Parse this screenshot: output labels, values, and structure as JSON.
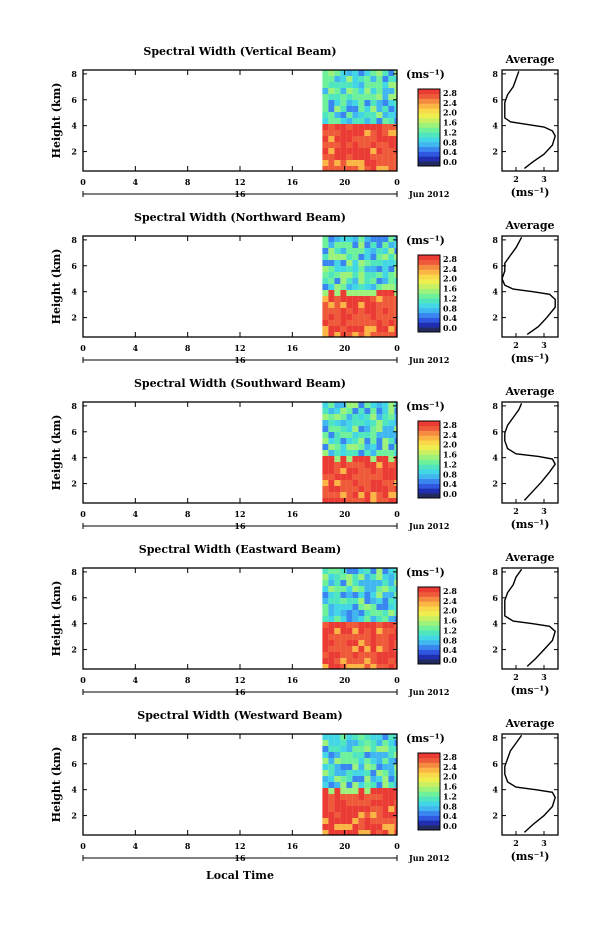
{
  "figure": {
    "xlabel": "Local Time",
    "ylabel": "Height (km)",
    "date_label": "Jun 2012",
    "day_label": "16",
    "unit_label": "(ms⁻¹)",
    "avg_title": "Average",
    "avg_xlabel": "(ms⁻¹)"
  },
  "colorscale": [
    "#232b5e",
    "#1f2fb0",
    "#2f57e0",
    "#3a86f0",
    "#41b7f0",
    "#43d7e6",
    "#4ee5bf",
    "#6ff09a",
    "#9cf27a",
    "#c8f062",
    "#eeef4f",
    "#f9d84a",
    "#fbb545",
    "#f58b40",
    "#ef5a3a",
    "#eb3b35"
  ],
  "chart_data": [
    {
      "type": "heatmap",
      "title": "Spectral Width (Vertical Beam)",
      "x_ticks": [
        "0",
        "4",
        "8",
        "12",
        "16",
        "20",
        "0"
      ],
      "y_ticks": [
        "2",
        "4",
        "6",
        "8"
      ],
      "xlim": [
        0,
        24
      ],
      "ylim": [
        0.5,
        8.3
      ],
      "data_start_hour": 18.3,
      "boundary_height": 4.1,
      "colorbar_ticks": [
        "0.0",
        "0.4",
        "0.8",
        "1.2",
        "1.6",
        "2.0",
        "2.4",
        "2.8"
      ],
      "average": {
        "x_ticks": [
          "2",
          "3"
        ],
        "y_ticks": [
          "2",
          "4",
          "6",
          "8"
        ],
        "xlim": [
          1.5,
          3.5
        ],
        "ylim": [
          0.5,
          8.3
        ],
        "profile": [
          [
            2.3,
            0.7
          ],
          [
            2.6,
            1.2
          ],
          [
            3.0,
            1.8
          ],
          [
            3.3,
            2.5
          ],
          [
            3.4,
            3.2
          ],
          [
            3.3,
            3.6
          ],
          [
            3.0,
            3.9
          ],
          [
            2.4,
            4.1
          ],
          [
            1.8,
            4.3
          ],
          [
            1.6,
            4.6
          ],
          [
            1.6,
            5.2
          ],
          [
            1.6,
            5.8
          ],
          [
            1.7,
            6.4
          ],
          [
            1.9,
            7.0
          ],
          [
            2.0,
            7.6
          ],
          [
            2.1,
            8.2
          ]
        ]
      }
    },
    {
      "type": "heatmap",
      "title": "Spectral Width (Northward Beam)",
      "x_ticks": [
        "0",
        "4",
        "8",
        "12",
        "16",
        "20",
        "0"
      ],
      "y_ticks": [
        "2",
        "4",
        "6",
        "8"
      ],
      "xlim": [
        0,
        24
      ],
      "ylim": [
        0.5,
        8.3
      ],
      "data_start_hour": 18.3,
      "boundary_height": 4.0,
      "colorbar_ticks": [
        "0.0",
        "0.4",
        "0.8",
        "1.2",
        "1.6",
        "2.0",
        "2.4",
        "2.8"
      ],
      "average": {
        "x_ticks": [
          "2",
          "3"
        ],
        "y_ticks": [
          "2",
          "4",
          "6",
          "8"
        ],
        "xlim": [
          1.5,
          3.5
        ],
        "ylim": [
          0.5,
          8.3
        ],
        "profile": [
          [
            2.4,
            0.7
          ],
          [
            2.8,
            1.3
          ],
          [
            3.1,
            2.0
          ],
          [
            3.4,
            2.8
          ],
          [
            3.4,
            3.4
          ],
          [
            3.2,
            3.8
          ],
          [
            2.6,
            4.0
          ],
          [
            1.9,
            4.2
          ],
          [
            1.6,
            4.5
          ],
          [
            1.5,
            5.0
          ],
          [
            1.6,
            5.6
          ],
          [
            1.6,
            6.2
          ],
          [
            1.8,
            6.8
          ],
          [
            2.0,
            7.4
          ],
          [
            2.2,
            8.2
          ]
        ]
      }
    },
    {
      "type": "heatmap",
      "title": "Spectral Width (Southward Beam)",
      "x_ticks": [
        "0",
        "4",
        "8",
        "12",
        "16",
        "20",
        "0"
      ],
      "y_ticks": [
        "2",
        "4",
        "6",
        "8"
      ],
      "xlim": [
        0,
        24
      ],
      "ylim": [
        0.5,
        8.3
      ],
      "data_start_hour": 18.3,
      "boundary_height": 3.9,
      "colorbar_ticks": [
        "0.0",
        "0.4",
        "0.8",
        "1.2",
        "1.6",
        "2.0",
        "2.4",
        "2.8"
      ],
      "average": {
        "x_ticks": [
          "2",
          "3"
        ],
        "y_ticks": [
          "2",
          "4",
          "6",
          "8"
        ],
        "xlim": [
          1.5,
          3.5
        ],
        "ylim": [
          0.5,
          8.3
        ],
        "profile": [
          [
            2.3,
            0.7
          ],
          [
            2.6,
            1.4
          ],
          [
            2.9,
            2.1
          ],
          [
            3.2,
            2.9
          ],
          [
            3.4,
            3.5
          ],
          [
            3.3,
            3.9
          ],
          [
            2.8,
            4.1
          ],
          [
            2.0,
            4.3
          ],
          [
            1.7,
            4.7
          ],
          [
            1.6,
            5.3
          ],
          [
            1.6,
            5.9
          ],
          [
            1.7,
            6.5
          ],
          [
            1.9,
            7.1
          ],
          [
            2.1,
            7.7
          ],
          [
            2.2,
            8.2
          ]
        ]
      }
    },
    {
      "type": "heatmap",
      "title": "Spectral Width (Eastward Beam)",
      "x_ticks": [
        "0",
        "4",
        "8",
        "12",
        "16",
        "20",
        "0"
      ],
      "y_ticks": [
        "2",
        "4",
        "6",
        "8"
      ],
      "xlim": [
        0,
        24
      ],
      "ylim": [
        0.5,
        8.3
      ],
      "data_start_hour": 18.3,
      "boundary_height": 4.1,
      "colorbar_ticks": [
        "0.0",
        "0.4",
        "0.8",
        "1.2",
        "1.6",
        "2.0",
        "2.4",
        "2.8"
      ],
      "average": {
        "x_ticks": [
          "2",
          "3"
        ],
        "y_ticks": [
          "2",
          "4",
          "6",
          "8"
        ],
        "xlim": [
          1.5,
          3.5
        ],
        "ylim": [
          0.5,
          8.3
        ],
        "profile": [
          [
            2.4,
            0.7
          ],
          [
            2.7,
            1.3
          ],
          [
            3.0,
            2.0
          ],
          [
            3.3,
            2.7
          ],
          [
            3.4,
            3.4
          ],
          [
            3.2,
            3.8
          ],
          [
            2.6,
            4.0
          ],
          [
            1.9,
            4.2
          ],
          [
            1.6,
            4.6
          ],
          [
            1.6,
            5.2
          ],
          [
            1.6,
            5.8
          ],
          [
            1.7,
            6.4
          ],
          [
            1.9,
            7.0
          ],
          [
            2.0,
            7.6
          ],
          [
            2.2,
            8.2
          ]
        ]
      }
    },
    {
      "type": "heatmap",
      "title": "Spectral Width (Westward Beam)",
      "x_ticks": [
        "0",
        "4",
        "8",
        "12",
        "16",
        "20",
        "0"
      ],
      "y_ticks": [
        "2",
        "4",
        "6",
        "8"
      ],
      "xlim": [
        0,
        24
      ],
      "ylim": [
        0.5,
        8.3
      ],
      "data_start_hour": 18.3,
      "boundary_height": 4.0,
      "colorbar_ticks": [
        "0.0",
        "0.4",
        "0.8",
        "1.2",
        "1.6",
        "2.0",
        "2.4",
        "2.8"
      ],
      "average": {
        "x_ticks": [
          "2",
          "3"
        ],
        "y_ticks": [
          "2",
          "4",
          "6",
          "8"
        ],
        "xlim": [
          1.5,
          3.5
        ],
        "ylim": [
          0.5,
          8.3
        ],
        "profile": [
          [
            2.3,
            0.7
          ],
          [
            2.6,
            1.3
          ],
          [
            3.0,
            2.0
          ],
          [
            3.3,
            2.7
          ],
          [
            3.4,
            3.4
          ],
          [
            3.3,
            3.8
          ],
          [
            2.7,
            4.0
          ],
          [
            2.0,
            4.2
          ],
          [
            1.7,
            4.6
          ],
          [
            1.6,
            5.2
          ],
          [
            1.6,
            5.8
          ],
          [
            1.7,
            6.4
          ],
          [
            1.8,
            7.0
          ],
          [
            2.0,
            7.6
          ],
          [
            2.2,
            8.2
          ]
        ]
      }
    }
  ]
}
